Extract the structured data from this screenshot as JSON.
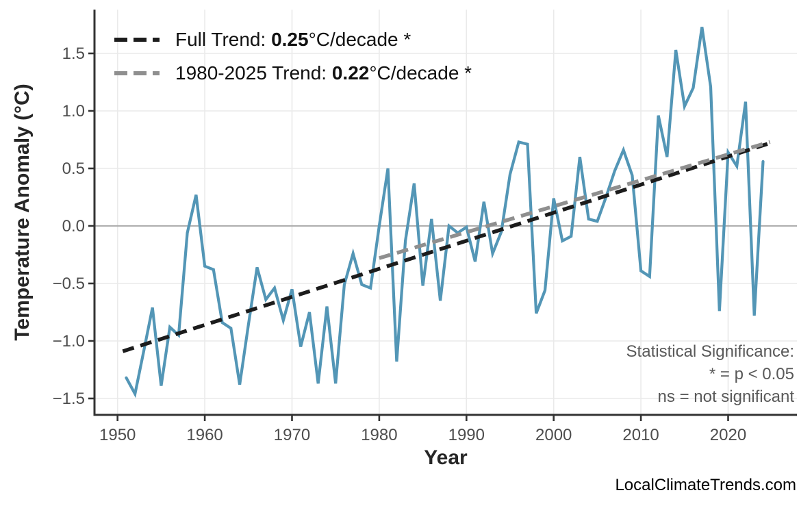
{
  "page": {
    "watermark": "LocalClimateTrends.com"
  },
  "chart_data": {
    "type": "line",
    "title": "",
    "xlabel": "Year",
    "ylabel": "Temperature Anomaly (°C)",
    "grid": true,
    "zero_line": true,
    "legend_position": "top-left",
    "xlim": [
      1947.3,
      2027.9
    ],
    "ylim": [
      -1.64,
      1.88
    ],
    "x_ticks": [
      1950,
      1960,
      1970,
      1980,
      1990,
      2000,
      2010,
      2020
    ],
    "x_tick_labels": [
      "1950",
      "1960",
      "1970",
      "1980",
      "1990",
      "2000",
      "2010",
      "2020"
    ],
    "y_ticks": [
      1.5,
      1.0,
      0.5,
      0.0,
      -0.5,
      -1.0,
      -1.5
    ],
    "y_tick_labels": [
      "1.5",
      "1.0",
      "0.5",
      "0.0",
      "−0.5",
      "−1.0",
      "−1.5"
    ],
    "series": [
      {
        "name": "annual-temperature-anomaly",
        "color": "#5396b6",
        "years": [
          1951,
          1952,
          1953,
          1954,
          1955,
          1956,
          1957,
          1958,
          1959,
          1960,
          1961,
          1962,
          1963,
          1964,
          1965,
          1966,
          1967,
          1968,
          1969,
          1970,
          1971,
          1972,
          1973,
          1974,
          1975,
          1976,
          1977,
          1978,
          1979,
          1980,
          1981,
          1982,
          1983,
          1984,
          1985,
          1986,
          1987,
          1988,
          1989,
          1990,
          1991,
          1992,
          1993,
          1994,
          1995,
          1996,
          1997,
          1998,
          1999,
          2000,
          2001,
          2002,
          2003,
          2004,
          2005,
          2006,
          2007,
          2008,
          2009,
          2010,
          2011,
          2012,
          2013,
          2014,
          2015,
          2016,
          2017,
          2018,
          2019,
          2020,
          2021,
          2022,
          2023,
          2024
        ],
        "values": [
          -1.32,
          -1.46,
          -1.09,
          -0.71,
          -1.39,
          -0.88,
          -0.95,
          -0.06,
          0.27,
          -0.35,
          -0.38,
          -0.84,
          -0.89,
          -1.38,
          -0.86,
          -0.36,
          -0.64,
          -0.54,
          -0.82,
          -0.55,
          -1.05,
          -0.75,
          -1.37,
          -0.7,
          -1.37,
          -0.51,
          -0.24,
          -0.51,
          -0.54,
          0.0,
          0.5,
          -1.18,
          -0.13,
          0.37,
          -0.52,
          0.06,
          -0.65,
          0.0,
          -0.06,
          -0.01,
          -0.31,
          0.21,
          -0.24,
          -0.05,
          0.45,
          0.73,
          0.71,
          -0.76,
          -0.56,
          0.24,
          -0.13,
          -0.09,
          0.6,
          0.06,
          0.04,
          0.25,
          0.48,
          0.66,
          0.44,
          -0.39,
          -0.44,
          0.96,
          0.6,
          1.53,
          1.04,
          1.2,
          1.73,
          1.21,
          -0.74,
          0.64,
          0.52,
          1.08,
          -0.78,
          0.56
        ]
      }
    ],
    "trends": [
      {
        "name": "full-trend",
        "color": "#1c1c1c",
        "x": [
          1950.6,
          2024.8
        ],
        "y": [
          -1.09,
          0.72
        ],
        "slope_per_decade": 0.25,
        "legend": {
          "prefix": "Full Trend: ",
          "bold": "0.25",
          "suffix": "°C/decade *"
        }
      },
      {
        "name": "trend-1980-2025",
        "color": "#8f8f8f",
        "x": [
          1980,
          2024.8
        ],
        "y": [
          -0.28,
          0.73
        ],
        "slope_per_decade": 0.22,
        "legend": {
          "prefix": "1980-2025 Trend: ",
          "bold": "0.22",
          "suffix": "°C/decade *"
        }
      }
    ],
    "annotation": {
      "title": "Statistical Significance:",
      "line2": "* = p < 0.05",
      "line3": "ns = not significant"
    }
  }
}
